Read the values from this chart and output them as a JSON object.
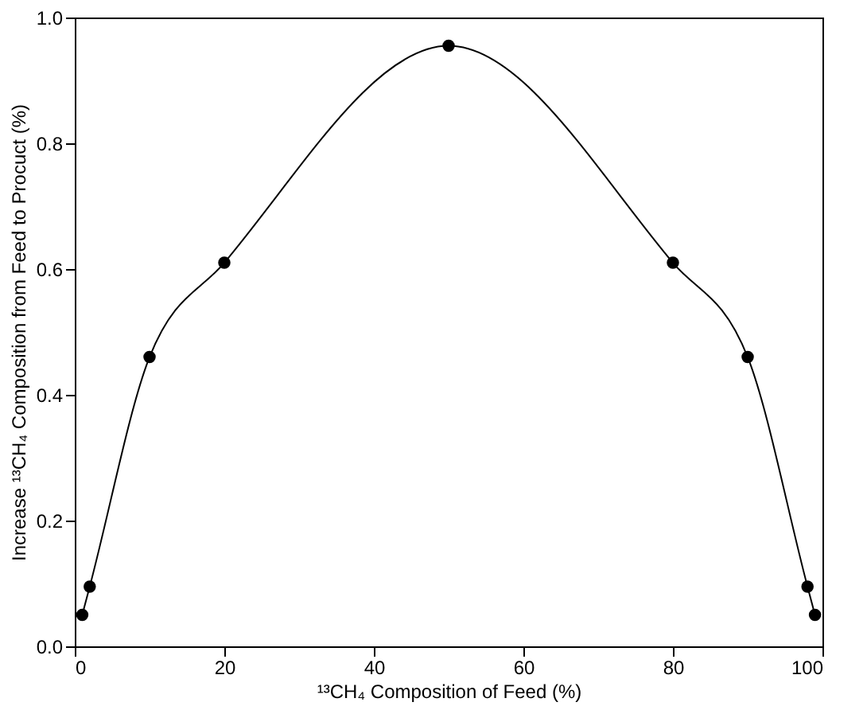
{
  "chart_data": {
    "type": "line",
    "xlabel": "¹³CH₄ Composition of Feed (%)",
    "ylabel": "Increase ¹³CH₄ Composition from Feed to Procuct (%)",
    "x": [
      1,
      2,
      10,
      20,
      50,
      80,
      90,
      98,
      99
    ],
    "series": [
      {
        "color": "#000000",
        "values": [
          0.05,
          0.095,
          0.46,
          0.61,
          0.955,
          0.61,
          0.46,
          0.095,
          0.05
        ]
      }
    ],
    "xlim": [
      0,
      100
    ],
    "xticks": [
      0,
      20,
      40,
      60,
      80,
      100
    ],
    "ylim": [
      0,
      1.0
    ],
    "yticks": [
      {
        "value": 0,
        "label": "0.0"
      },
      {
        "value": 0.2,
        "label": "0.2"
      },
      {
        "value": 0.4,
        "label": "0.4"
      },
      {
        "value": 0.6,
        "label": "0.6"
      },
      {
        "value": 0.8,
        "label": "0.8"
      },
      {
        "value": 1.0,
        "label": "1.0"
      }
    ],
    "marker": "circle",
    "line_style": "solid",
    "grid": false
  }
}
